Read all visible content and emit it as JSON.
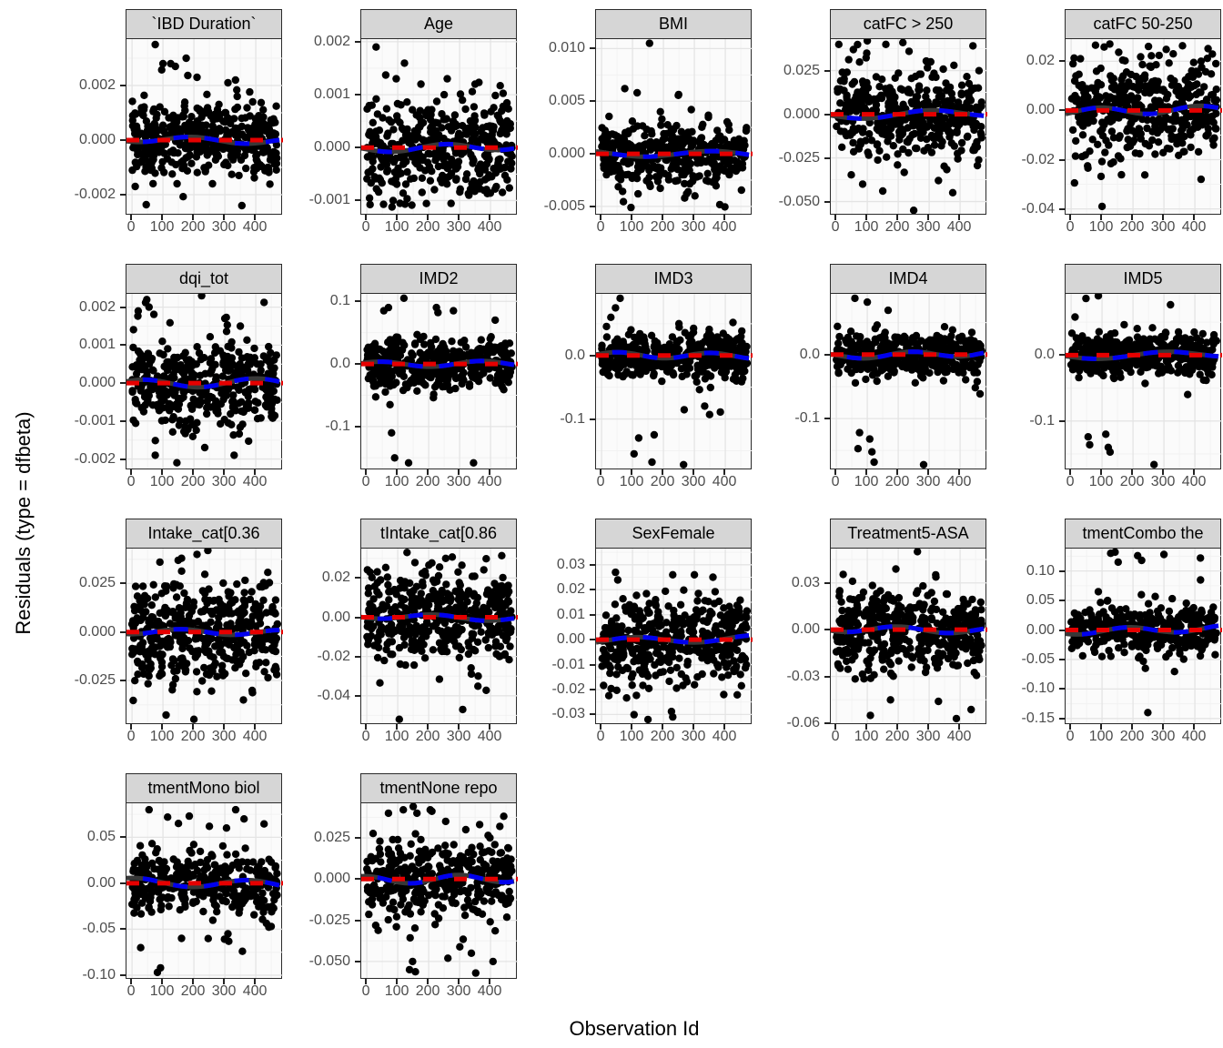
{
  "ylabel": "Residuals (type = dfbeta)",
  "xlabel": "Observation Id",
  "colors": {
    "point": "#000000",
    "smooth_band": "#383838",
    "zero_reference_dash": "#e60000",
    "loess_dash": "#0000ee",
    "strip_bg": "#d6d6d6",
    "strip_border": "#2b2b2b",
    "panel_bg": "#fbfbfb",
    "panel_border": "#2b2b2b",
    "grid_major": "#e4e4e4",
    "grid_minor": "#f2f2f2",
    "tick_label": "#4d4d4d"
  },
  "chart_data": {
    "type": "scatter",
    "title": "",
    "xlabel": "Observation Id",
    "ylabel": "Residuals (type = dfbeta)",
    "grid": true,
    "legend": "none",
    "n_cols": 5,
    "x_ticks": [
      0,
      100,
      200,
      300,
      400
    ],
    "x_tick_labels": [
      "0",
      "100",
      "200",
      "300",
      "400"
    ],
    "xlim": [
      -18,
      488
    ],
    "x_data_range": [
      0,
      470
    ],
    "overlays": [
      "dark-gray loess smooth band near 0",
      "red dashed horizontal zero reference line",
      "blue dashed loess smooth line"
    ],
    "facets": [
      {
        "title": "`IBD Duration`",
        "ylim": [
          -0.0027,
          0.0037
        ],
        "ytick_labels": [
          "0.002",
          "0.000",
          "-0.002"
        ],
        "ytick_values": [
          0.002,
          0,
          -0.002
        ],
        "n": 430,
        "sd": 0.00062,
        "outliers": [
          [
            75,
            0.0035
          ],
          [
            100,
            0.0028
          ],
          [
            125,
            0.0028
          ],
          [
            140,
            0.0027
          ],
          [
            175,
            0.003
          ],
          [
            210,
            0.0023
          ],
          [
            310,
            0.0021
          ],
          [
            340,
            0.0016
          ],
          [
            390,
            0.0014
          ],
          [
            355,
            -0.0024
          ],
          [
            260,
            -0.0016
          ]
        ]
      },
      {
        "title": "Age",
        "ylim": [
          -0.00125,
          0.00205
        ],
        "ytick_labels": [
          "0.002",
          "0.001",
          "0.000",
          "-0.001"
        ],
        "ytick_values": [
          0.002,
          0.001,
          0,
          -0.001
        ],
        "n": 430,
        "sd": 0.00045,
        "outliers": [
          [
            30,
            0.0019
          ],
          [
            95,
            0.0013
          ],
          [
            175,
            0.0012
          ],
          [
            260,
            0.0013
          ],
          [
            250,
            0.001
          ],
          [
            350,
            0.0012
          ],
          [
            85,
            -0.001
          ],
          [
            330,
            -0.0009
          ]
        ]
      },
      {
        "title": "BMI",
        "ylim": [
          -0.0057,
          0.0109
        ],
        "ytick_labels": [
          "0.010",
          "0.005",
          "0.000",
          "-0.005"
        ],
        "ytick_values": [
          0.01,
          0.005,
          0,
          -0.005
        ],
        "n": 420,
        "sd": 0.0013,
        "outliers": [
          [
            155,
            0.0105
          ],
          [
            75,
            0.0062
          ],
          [
            115,
            0.0058
          ],
          [
            190,
            0.004
          ],
          [
            290,
            0.0042
          ],
          [
            95,
            -0.0051
          ],
          [
            275,
            -0.0038
          ],
          [
            280,
            -0.0036
          ]
        ]
      },
      {
        "title": "catFC > 250",
        "ylim": [
          -0.057,
          0.043
        ],
        "ytick_labels": [
          "0.025",
          "0.000",
          "-0.025",
          "-0.050"
        ],
        "ytick_values": [
          0.025,
          0,
          -0.025,
          -0.05
        ],
        "n": 430,
        "sd": 0.012,
        "outliers": [
          [
            8,
            0.04
          ],
          [
            55,
            0.037
          ],
          [
            100,
            0.042
          ],
          [
            160,
            0.04
          ],
          [
            215,
            0.041
          ],
          [
            235,
            0.036
          ],
          [
            305,
            0.03
          ],
          [
            380,
            0.028
          ],
          [
            250,
            -0.055
          ],
          [
            150,
            -0.044
          ],
          [
            85,
            -0.04
          ],
          [
            330,
            -0.038
          ]
        ]
      },
      {
        "title": "catFC 50-250",
        "ylim": [
          -0.042,
          0.029
        ],
        "ytick_labels": [
          "0.02",
          "0.00",
          "-0.02",
          "-0.04"
        ],
        "ytick_values": [
          0.02,
          0,
          -0.02,
          -0.04
        ],
        "n": 430,
        "sd": 0.0095,
        "outliers": [
          [
            30,
            0.021
          ],
          [
            125,
            0.027
          ],
          [
            250,
            0.026
          ],
          [
            330,
            0.023
          ],
          [
            420,
            0.02
          ],
          [
            100,
            -0.039
          ],
          [
            420,
            -0.028
          ]
        ]
      },
      {
        "title": "dqi_tot",
        "ylim": [
          -0.00225,
          0.00235
        ],
        "ytick_labels": [
          "0.002",
          "0.001",
          "0.000",
          "-0.001",
          "-0.002"
        ],
        "ytick_values": [
          0.002,
          0.001,
          0,
          -0.001,
          -0.002
        ],
        "n": 440,
        "sd": 0.00052,
        "outliers": [
          [
            20,
            0.0019
          ],
          [
            55,
            0.002
          ],
          [
            225,
            0.0023
          ],
          [
            300,
            0.0017
          ],
          [
            350,
            0.0015
          ],
          [
            75,
            -0.0019
          ],
          [
            145,
            -0.0021
          ],
          [
            235,
            -0.0017
          ],
          [
            330,
            -0.0019
          ]
        ]
      },
      {
        "title": "IMD2",
        "ylim": [
          -0.167,
          0.112
        ],
        "ytick_labels": [
          "0.1",
          "0.0",
          "-0.1"
        ],
        "ytick_values": [
          0.1,
          0,
          -0.1
        ],
        "n": 420,
        "sd": 0.02,
        "outliers": [
          [
            120,
            0.105
          ],
          [
            55,
            0.085
          ],
          [
            70,
            0.09
          ],
          [
            225,
            0.09
          ],
          [
            230,
            0.082
          ],
          [
            280,
            0.085
          ],
          [
            415,
            0.07
          ],
          [
            75,
            -0.065
          ],
          [
            80,
            -0.11
          ],
          [
            90,
            -0.15
          ],
          [
            135,
            -0.158
          ],
          [
            345,
            -0.158
          ]
        ]
      },
      {
        "title": "IMD3",
        "ylim": [
          -0.178,
          0.097
        ],
        "ytick_labels": [
          "0.0",
          "-0.1"
        ],
        "ytick_values": [
          0,
          -0.1
        ],
        "n": 420,
        "sd": 0.017,
        "outliers": [
          [
            60,
            0.09
          ],
          [
            45,
            0.075
          ],
          [
            30,
            0.06
          ],
          [
            250,
            0.05
          ],
          [
            120,
            -0.13
          ],
          [
            105,
            -0.155
          ],
          [
            170,
            -0.125
          ],
          [
            163,
            -0.168
          ],
          [
            265,
            -0.172
          ]
        ]
      },
      {
        "title": "IMD4",
        "ylim": [
          -0.178,
          0.095
        ],
        "ytick_labels": [
          "0.0",
          "-0.1"
        ],
        "ytick_values": [
          0,
          -0.1
        ],
        "n": 430,
        "sd": 0.016,
        "outliers": [
          [
            60,
            0.088
          ],
          [
            100,
            0.082
          ],
          [
            75,
            -0.122
          ],
          [
            70,
            -0.147
          ],
          [
            108,
            -0.132
          ],
          [
            115,
            -0.152
          ],
          [
            122,
            -0.168
          ],
          [
            282,
            -0.172
          ]
        ]
      },
      {
        "title": "IMD5",
        "ylim": [
          -0.172,
          0.093
        ],
        "ytick_labels": [
          "0.0",
          "-0.1"
        ],
        "ytick_values": [
          0,
          -0.1
        ],
        "n": 430,
        "sd": 0.015,
        "outliers": [
          [
            48,
            0.086
          ],
          [
            88,
            0.09
          ],
          [
            55,
            -0.124
          ],
          [
            60,
            -0.136
          ],
          [
            112,
            -0.12
          ],
          [
            120,
            -0.14
          ],
          [
            126,
            -0.147
          ],
          [
            268,
            -0.166
          ]
        ]
      },
      {
        "title": "Intake_cat[0.36",
        "ylim": [
          -0.047,
          0.043
        ],
        "ytick_labels": [
          "0.025",
          "0.000",
          "-0.025"
        ],
        "ytick_values": [
          0.025,
          0,
          -0.025
        ],
        "n": 430,
        "sd": 0.0125,
        "outliers": [
          [
            245,
            0.042
          ],
          [
            90,
            0.036
          ],
          [
            160,
            0.038
          ],
          [
            210,
            0.04
          ],
          [
            200,
            -0.045
          ],
          [
            360,
            -0.035
          ]
        ]
      },
      {
        "title": "tIntake_cat[0.86",
        "ylim": [
          -0.054,
          0.035
        ],
        "ytick_labels": [
          "0.02",
          "0.00",
          "-0.02",
          "-0.04"
        ],
        "ytick_values": [
          0.02,
          0,
          -0.02,
          -0.04
        ],
        "n": 430,
        "sd": 0.011,
        "outliers": [
          [
            130,
            0.033
          ],
          [
            255,
            0.03
          ],
          [
            105,
            -0.052
          ],
          [
            310,
            -0.047
          ],
          [
            360,
            -0.03
          ]
        ]
      },
      {
        "title": "SexFemale",
        "ylim": [
          -0.0335,
          0.0365
        ],
        "ytick_labels": [
          "0.03",
          "0.02",
          "0.01",
          "0.00",
          "-0.01",
          "-0.02",
          "-0.03"
        ],
        "ytick_values": [
          0.03,
          0.02,
          0.01,
          0,
          -0.01,
          -0.02,
          -0.03
        ],
        "n": 450,
        "sd": 0.0085,
        "outliers": [
          [
            45,
            0.027
          ],
          [
            230,
            0.026
          ],
          [
            300,
            0.026
          ],
          [
            360,
            0.025
          ],
          [
            150,
            -0.032
          ],
          [
            230,
            -0.031
          ],
          [
            395,
            -0.022
          ]
        ]
      },
      {
        "title": "Treatment5-ASA",
        "ylim": [
          -0.06,
          0.052
        ],
        "ytick_labels": [
          "0.03",
          "0.00",
          "-0.03",
          "-0.06"
        ],
        "ytick_values": [
          0.03,
          0,
          -0.03,
          -0.06
        ],
        "n": 430,
        "sd": 0.013,
        "outliers": [
          [
            262,
            0.05
          ],
          [
            110,
            -0.055
          ],
          [
            388,
            -0.057
          ],
          [
            330,
            -0.046
          ],
          [
            175,
            -0.045
          ]
        ]
      },
      {
        "title": "tmentCombo the",
        "ylim": [
          -0.158,
          0.138
        ],
        "ytick_labels": [
          "0.10",
          "0.05",
          "0.00",
          "-0.05",
          "-0.10",
          "-0.15"
        ],
        "ytick_values": [
          0.1,
          0.05,
          0,
          -0.05,
          -0.1,
          -0.15
        ],
        "n": 380,
        "sd": 0.02,
        "outliers": [
          [
            128,
            0.13
          ],
          [
            142,
            0.132
          ],
          [
            152,
            0.115
          ],
          [
            215,
            0.126
          ],
          [
            228,
            0.118
          ],
          [
            300,
            0.128
          ],
          [
            418,
            0.122
          ],
          [
            88,
            0.065
          ],
          [
            118,
            0.05
          ],
          [
            240,
            -0.065
          ],
          [
            248,
            -0.14
          ]
        ]
      },
      {
        "title": "tmentMono biol",
        "ylim": [
          -0.103,
          0.087
        ],
        "ytick_labels": [
          "0.05",
          "0.00",
          "-0.05",
          "-0.10"
        ],
        "ytick_values": [
          0.05,
          0,
          -0.05,
          -0.1
        ],
        "n": 360,
        "sd": 0.017,
        "outliers": [
          [
            55,
            0.08
          ],
          [
            115,
            0.072
          ],
          [
            150,
            0.065
          ],
          [
            185,
            0.073
          ],
          [
            250,
            0.062
          ],
          [
            335,
            0.08
          ],
          [
            362,
            0.07
          ],
          [
            28,
            -0.07
          ],
          [
            82,
            -0.097
          ],
          [
            92,
            -0.092
          ],
          [
            160,
            -0.06
          ],
          [
            310,
            -0.055
          ]
        ]
      },
      {
        "title": "tmentNone repo",
        "ylim": [
          -0.06,
          0.046
        ],
        "ytick_labels": [
          "0.025",
          "0.000",
          "-0.025",
          "-0.050"
        ],
        "ytick_values": [
          0.025,
          0,
          -0.025,
          -0.05
        ],
        "n": 380,
        "sd": 0.012,
        "outliers": [
          [
            70,
            0.04
          ],
          [
            118,
            0.042
          ],
          [
            150,
            0.044
          ],
          [
            162,
            0.04
          ],
          [
            205,
            0.042
          ],
          [
            255,
            0.035
          ],
          [
            320,
            0.03
          ],
          [
            430,
            0.032
          ],
          [
            138,
            -0.055
          ],
          [
            148,
            -0.05
          ],
          [
            262,
            -0.048
          ],
          [
            352,
            -0.057
          ],
          [
            338,
            -0.045
          ],
          [
            408,
            -0.05
          ]
        ]
      }
    ]
  }
}
